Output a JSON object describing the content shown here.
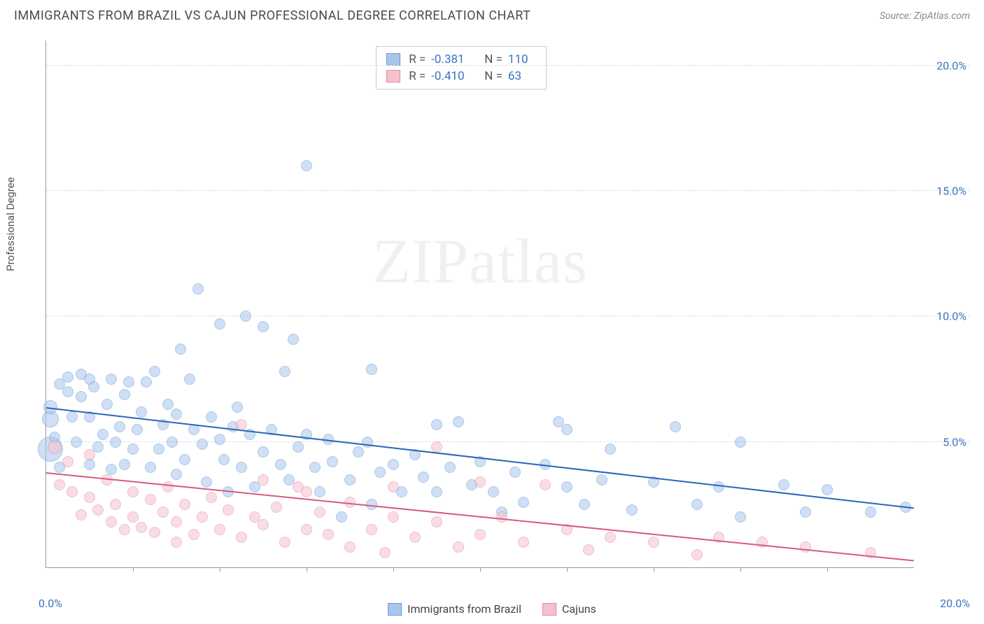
{
  "header": {
    "title": "IMMIGRANTS FROM BRAZIL VS CAJUN PROFESSIONAL DEGREE CORRELATION CHART",
    "source": "Source: ZipAtlas.com"
  },
  "chart": {
    "type": "scatter",
    "y_label": "Professional Degree",
    "xlim": [
      0,
      20
    ],
    "ylim": [
      0,
      21
    ],
    "x_tick_left": "0.0%",
    "x_tick_right": "20.0%",
    "y_ticks": [
      {
        "v": 5,
        "label": "5.0%"
      },
      {
        "v": 10,
        "label": "10.0%"
      },
      {
        "v": 15,
        "label": "15.0%"
      },
      {
        "v": 20,
        "label": "20.0%"
      }
    ],
    "x_minor_ticks": [
      2,
      4,
      6,
      8,
      10,
      12,
      14,
      16,
      18
    ],
    "background_color": "#ffffff",
    "grid_color": "#dddddd",
    "axis_color": "#999999",
    "watermark": "ZIPatlas",
    "series": [
      {
        "name": "Immigrants from Brazil",
        "color_fill": "#a8c5ec",
        "color_stroke": "#6a9bd8",
        "trend_color": "#2a66b8",
        "r_label": "R =",
        "r_value": "-0.381",
        "n_label": "N =",
        "n_value": "110",
        "base_radius": 7,
        "trend": {
          "x1": 0,
          "y1": 6.4,
          "x2": 20,
          "y2": 2.4
        },
        "points": [
          [
            0.1,
            5.9,
            12
          ],
          [
            0.1,
            4.7,
            18
          ],
          [
            0.1,
            6.4,
            10
          ],
          [
            0.2,
            5.2,
            8
          ],
          [
            0.3,
            7.3,
            8
          ],
          [
            0.3,
            4.0,
            8
          ],
          [
            0.5,
            7.0,
            8
          ],
          [
            0.5,
            7.6,
            8
          ],
          [
            0.6,
            6.0,
            8
          ],
          [
            0.7,
            5.0,
            8
          ],
          [
            0.8,
            7.7,
            8
          ],
          [
            0.8,
            6.8,
            8
          ],
          [
            1.0,
            4.1,
            8
          ],
          [
            1.0,
            7.5,
            8
          ],
          [
            1.0,
            6.0,
            8
          ],
          [
            1.1,
            7.2,
            8
          ],
          [
            1.2,
            4.8,
            8
          ],
          [
            1.3,
            5.3,
            8
          ],
          [
            1.4,
            6.5,
            8
          ],
          [
            1.5,
            3.9,
            8
          ],
          [
            1.5,
            7.5,
            8
          ],
          [
            1.6,
            5.0,
            8
          ],
          [
            1.7,
            5.6,
            8
          ],
          [
            1.8,
            4.1,
            8
          ],
          [
            1.8,
            6.9,
            8
          ],
          [
            1.9,
            7.4,
            8
          ],
          [
            2.0,
            4.7,
            8
          ],
          [
            2.1,
            5.5,
            8
          ],
          [
            2.2,
            6.2,
            8
          ],
          [
            2.3,
            7.4,
            8
          ],
          [
            2.4,
            4.0,
            8
          ],
          [
            2.5,
            7.8,
            8
          ],
          [
            2.6,
            4.7,
            8
          ],
          [
            2.7,
            5.7,
            8
          ],
          [
            2.8,
            6.5,
            8
          ],
          [
            2.9,
            5.0,
            8
          ],
          [
            3.0,
            3.7,
            8
          ],
          [
            3.0,
            6.1,
            8
          ],
          [
            3.1,
            8.7,
            8
          ],
          [
            3.2,
            4.3,
            8
          ],
          [
            3.3,
            7.5,
            8
          ],
          [
            3.4,
            5.5,
            8
          ],
          [
            3.5,
            11.1,
            8
          ],
          [
            3.6,
            4.9,
            8
          ],
          [
            3.7,
            3.4,
            8
          ],
          [
            3.8,
            6.0,
            8
          ],
          [
            4.0,
            5.1,
            8
          ],
          [
            4.0,
            9.7,
            8
          ],
          [
            4.1,
            4.3,
            8
          ],
          [
            4.2,
            3.0,
            8
          ],
          [
            4.3,
            5.6,
            8
          ],
          [
            4.4,
            6.4,
            8
          ],
          [
            4.5,
            4.0,
            8
          ],
          [
            4.6,
            10.0,
            8
          ],
          [
            4.7,
            5.3,
            8
          ],
          [
            4.8,
            3.2,
            8
          ],
          [
            5.0,
            4.6,
            8
          ],
          [
            5.0,
            9.6,
            8
          ],
          [
            5.2,
            5.5,
            8
          ],
          [
            5.4,
            4.1,
            8
          ],
          [
            5.5,
            7.8,
            8
          ],
          [
            5.6,
            3.5,
            8
          ],
          [
            5.7,
            9.1,
            8
          ],
          [
            5.8,
            4.8,
            8
          ],
          [
            6.0,
            5.3,
            8
          ],
          [
            6.0,
            16.0,
            8
          ],
          [
            6.2,
            4.0,
            8
          ],
          [
            6.3,
            3.0,
            8
          ],
          [
            6.5,
            5.1,
            8
          ],
          [
            6.6,
            4.2,
            8
          ],
          [
            6.8,
            2.0,
            8
          ],
          [
            7.0,
            3.5,
            8
          ],
          [
            7.2,
            4.6,
            8
          ],
          [
            7.4,
            5.0,
            8
          ],
          [
            7.5,
            2.5,
            8
          ],
          [
            7.5,
            7.9,
            8
          ],
          [
            7.7,
            3.8,
            8
          ],
          [
            8.0,
            4.1,
            8
          ],
          [
            8.2,
            3.0,
            8
          ],
          [
            8.5,
            4.5,
            8
          ],
          [
            8.7,
            3.6,
            8
          ],
          [
            9.0,
            3.0,
            8
          ],
          [
            9.0,
            5.7,
            8
          ],
          [
            9.3,
            4.0,
            8
          ],
          [
            9.5,
            5.8,
            8
          ],
          [
            9.8,
            3.3,
            8
          ],
          [
            10.0,
            4.2,
            8
          ],
          [
            10.3,
            3.0,
            8
          ],
          [
            10.5,
            2.2,
            8
          ],
          [
            10.8,
            3.8,
            8
          ],
          [
            11.0,
            2.6,
            8
          ],
          [
            11.5,
            4.1,
            8
          ],
          [
            11.8,
            5.8,
            8
          ],
          [
            12.0,
            3.2,
            8
          ],
          [
            12.0,
            5.5,
            8
          ],
          [
            12.4,
            2.5,
            8
          ],
          [
            12.8,
            3.5,
            8
          ],
          [
            13.0,
            4.7,
            8
          ],
          [
            13.5,
            2.3,
            8
          ],
          [
            14.0,
            3.4,
            8
          ],
          [
            14.5,
            5.6,
            8
          ],
          [
            15.0,
            2.5,
            8
          ],
          [
            15.5,
            3.2,
            8
          ],
          [
            16.0,
            2.0,
            8
          ],
          [
            16.0,
            5.0,
            8
          ],
          [
            17.0,
            3.3,
            8
          ],
          [
            17.5,
            2.2,
            8
          ],
          [
            18.0,
            3.1,
            8
          ],
          [
            19.0,
            2.2,
            8
          ],
          [
            19.8,
            2.4,
            8
          ]
        ]
      },
      {
        "name": "Cajuns",
        "color_fill": "#f3c2cf",
        "color_stroke": "#e68aa3",
        "trend_color": "#d85a80",
        "r_label": "R =",
        "r_value": "-0.410",
        "n_label": "N =",
        "n_value": "63",
        "base_radius": 7,
        "trend": {
          "x1": 0,
          "y1": 3.8,
          "x2": 20,
          "y2": 0.3
        },
        "points": [
          [
            0.2,
            4.8,
            10
          ],
          [
            0.3,
            3.3,
            8
          ],
          [
            0.5,
            4.2,
            8
          ],
          [
            0.6,
            3.0,
            8
          ],
          [
            0.8,
            2.1,
            8
          ],
          [
            1.0,
            4.5,
            8
          ],
          [
            1.0,
            2.8,
            8
          ],
          [
            1.2,
            2.3,
            8
          ],
          [
            1.4,
            3.5,
            8
          ],
          [
            1.5,
            1.8,
            8
          ],
          [
            1.6,
            2.5,
            8
          ],
          [
            1.8,
            1.5,
            8
          ],
          [
            2.0,
            3.0,
            8
          ],
          [
            2.0,
            2.0,
            8
          ],
          [
            2.2,
            1.6,
            8
          ],
          [
            2.4,
            2.7,
            8
          ],
          [
            2.5,
            1.4,
            8
          ],
          [
            2.7,
            2.2,
            8
          ],
          [
            2.8,
            3.2,
            8
          ],
          [
            3.0,
            1.8,
            8
          ],
          [
            3.0,
            1.0,
            8
          ],
          [
            3.2,
            2.5,
            8
          ],
          [
            3.4,
            1.3,
            8
          ],
          [
            3.6,
            2.0,
            8
          ],
          [
            3.8,
            2.8,
            8
          ],
          [
            4.0,
            1.5,
            8
          ],
          [
            4.2,
            2.3,
            8
          ],
          [
            4.5,
            1.2,
            8
          ],
          [
            4.5,
            5.7,
            8
          ],
          [
            4.8,
            2.0,
            8
          ],
          [
            5.0,
            1.7,
            8
          ],
          [
            5.0,
            3.5,
            8
          ],
          [
            5.3,
            2.4,
            8
          ],
          [
            5.5,
            1.0,
            8
          ],
          [
            5.8,
            3.2,
            8
          ],
          [
            6.0,
            1.5,
            8
          ],
          [
            6.0,
            3.0,
            8
          ],
          [
            6.3,
            2.2,
            8
          ],
          [
            6.5,
            1.3,
            8
          ],
          [
            7.0,
            0.8,
            8
          ],
          [
            7.0,
            2.6,
            8
          ],
          [
            7.5,
            1.5,
            8
          ],
          [
            7.8,
            0.6,
            8
          ],
          [
            8.0,
            2.0,
            8
          ],
          [
            8.0,
            3.2,
            8
          ],
          [
            8.5,
            1.2,
            8
          ],
          [
            9.0,
            4.8,
            8
          ],
          [
            9.0,
            1.8,
            8
          ],
          [
            9.5,
            0.8,
            8
          ],
          [
            10.0,
            1.3,
            8
          ],
          [
            10.0,
            3.4,
            8
          ],
          [
            10.5,
            2.0,
            8
          ],
          [
            11.0,
            1.0,
            8
          ],
          [
            11.5,
            3.3,
            8
          ],
          [
            12.0,
            1.5,
            8
          ],
          [
            12.5,
            0.7,
            8
          ],
          [
            13.0,
            1.2,
            8
          ],
          [
            14.0,
            1.0,
            8
          ],
          [
            15.0,
            0.5,
            8
          ],
          [
            15.5,
            1.2,
            8
          ],
          [
            16.5,
            1.0,
            8
          ],
          [
            17.5,
            0.8,
            8
          ],
          [
            19.0,
            0.6,
            8
          ]
        ]
      }
    ],
    "bottom_legend": [
      {
        "label": "Immigrants from Brazil",
        "fill": "#a8c5ec",
        "stroke": "#6a9bd8"
      },
      {
        "label": "Cajuns",
        "fill": "#f3c2cf",
        "stroke": "#e68aa3"
      }
    ]
  }
}
